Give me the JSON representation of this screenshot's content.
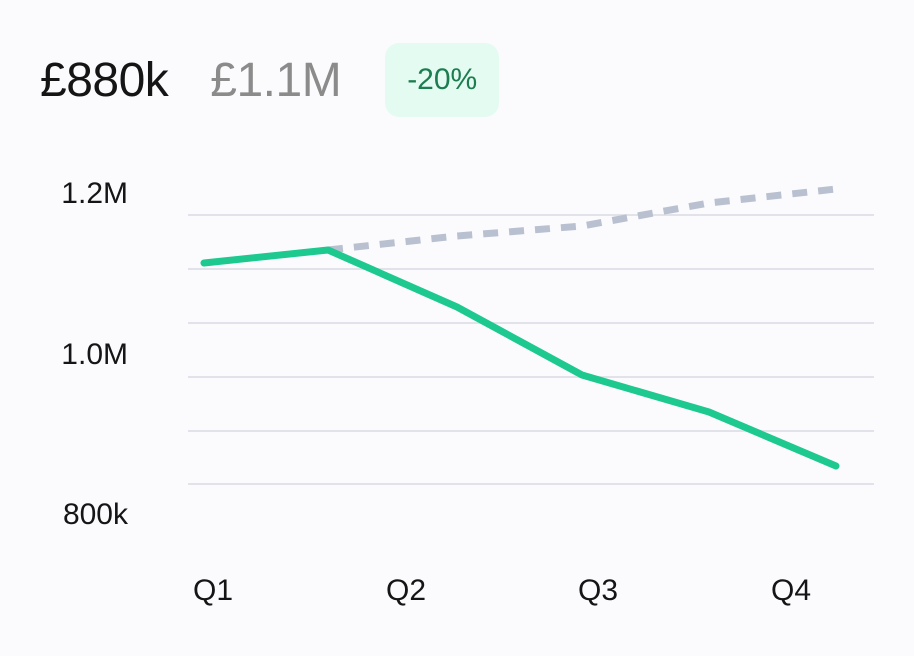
{
  "header": {
    "primary_value": "£880k",
    "secondary_value": "£1.1M",
    "change_badge": "-20%"
  },
  "colors": {
    "actual": "#1dc98f",
    "target": "#b9c1d0",
    "grid": "#e2e3ea",
    "badge_bg": "#e4fbf2",
    "badge_text": "#1c7d4f"
  },
  "chart_data": {
    "type": "line",
    "x_tick_labels": [
      "Q1",
      "Q2",
      "Q3",
      "Q4"
    ],
    "y_tick_labels": [
      "1.2M",
      "1.0M",
      "800k"
    ],
    "y_ticks": [
      1200000,
      1000000,
      800000
    ],
    "ylim": [
      780000,
      1240000
    ],
    "xlim": [
      0.9,
      4.1
    ],
    "grid": true,
    "series": [
      {
        "style": "solid",
        "points": [
          {
            "x": 1.0,
            "y": 1110000
          },
          {
            "x": 1.65,
            "y": 1125000
          },
          {
            "x": 2.3,
            "y": 1065000
          },
          {
            "x": 3.0,
            "y": 990000
          },
          {
            "x": 3.65,
            "y": 950000
          },
          {
            "x": 4.3,
            "y": 890000
          }
        ]
      },
      {
        "style": "dashed",
        "points": [
          {
            "x": 1.65,
            "y": 1125000
          },
          {
            "x": 2.3,
            "y": 1150000
          },
          {
            "x": 3.0,
            "y": 1160000
          },
          {
            "x": 3.65,
            "y": 1185000
          },
          {
            "x": 4.3,
            "y": 1200000
          }
        ]
      }
    ]
  }
}
